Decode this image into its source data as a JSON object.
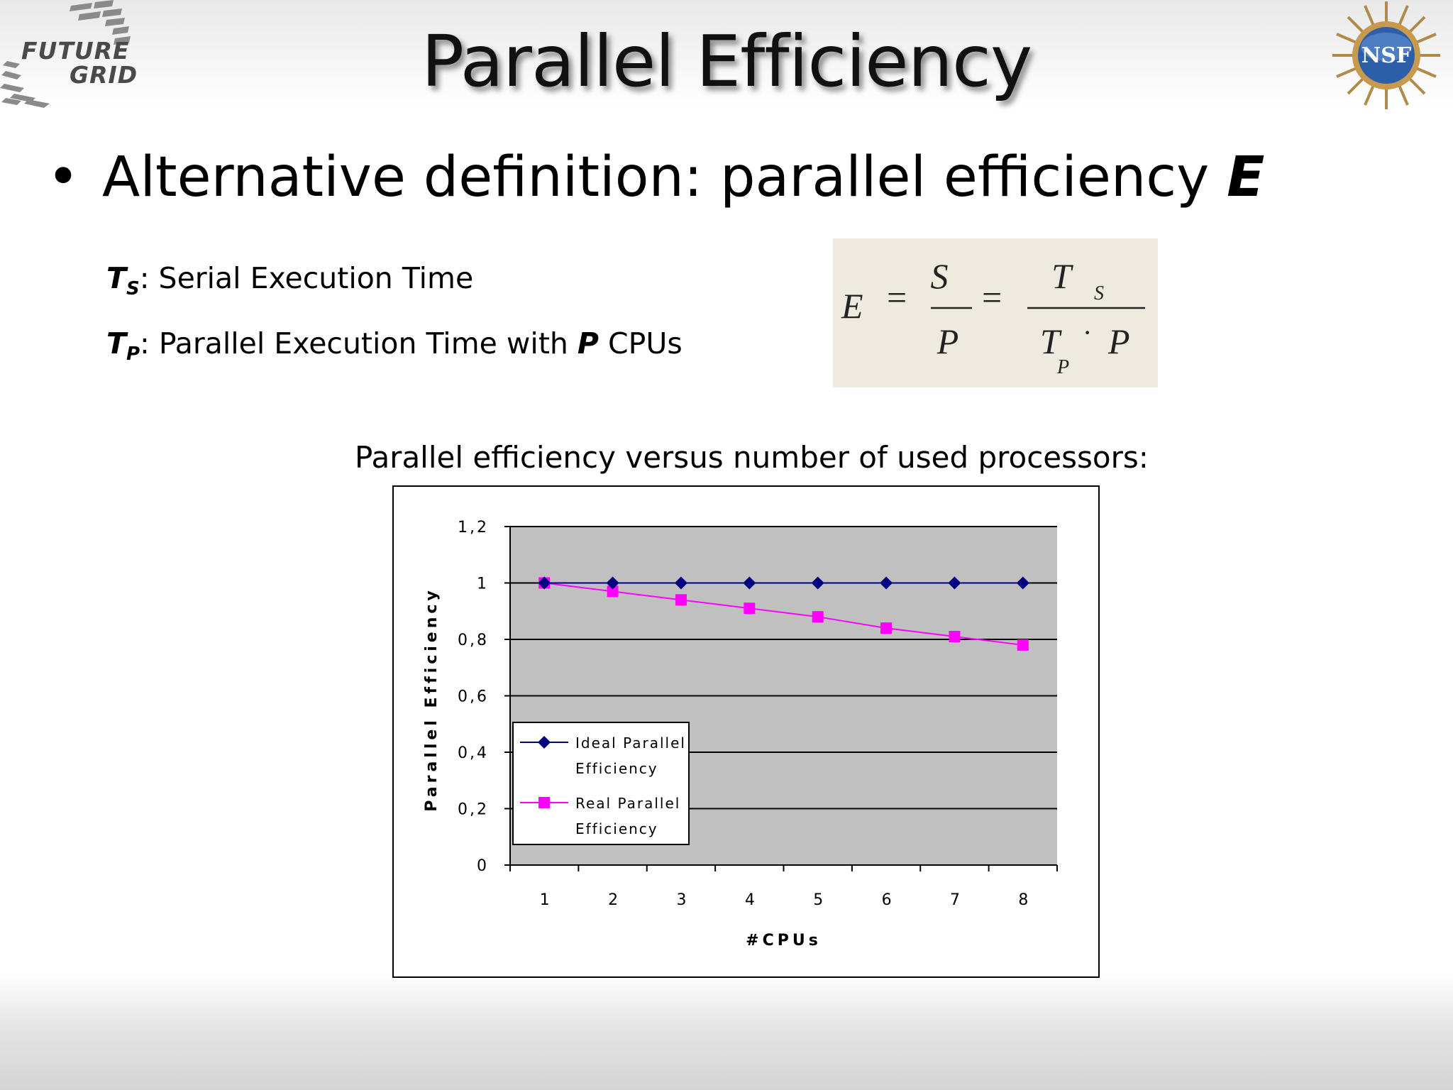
{
  "logo": {
    "line1": "FUTURE",
    "line2": "GRID"
  },
  "nsf_logo": {
    "text": "NSF"
  },
  "title": "Parallel Efficiency",
  "bullet": {
    "text": "Alternative definition: parallel efficiency ",
    "emphasis": "E"
  },
  "definitions": [
    {
      "symbol": "T",
      "sub": "S",
      "text": ": Serial Execution Time"
    },
    {
      "symbol": "T",
      "sub": "P",
      "text_before": ": Parallel Execution Time with ",
      "emphasis": "P",
      "text_after": " CPUs"
    }
  ],
  "formula": {
    "E": "E",
    "eq": "=",
    "S": "S",
    "P": "P",
    "T": "T",
    "subS": "S",
    "subP": "P",
    "dot": "·"
  },
  "chart_caption": "Parallel efficiency versus number of used processors:",
  "chart_data": {
    "type": "line",
    "x": [
      1,
      2,
      3,
      4,
      5,
      6,
      7,
      8
    ],
    "xlabel": "#CPUs",
    "ylabel": "Parallel Efficiency",
    "ylim": [
      0,
      1.2
    ],
    "yticks": [
      0,
      0.2,
      0.4,
      0.6,
      0.8,
      1,
      1.2
    ],
    "ytick_labels": [
      "0",
      "0,2",
      "0,4",
      "0,6",
      "0,8",
      "1",
      "1,2"
    ],
    "grid": true,
    "legend": "left, inside plot",
    "series": [
      {
        "name": "Ideal Parallel Efficiency",
        "legend_lines": [
          "Ideal Parallel",
          "Efficiency"
        ],
        "marker": "diamond",
        "color": "#000080",
        "values": [
          1,
          1,
          1,
          1,
          1,
          1,
          1,
          1
        ]
      },
      {
        "name": "Real Parallel Efficiency",
        "legend_lines": [
          "Real Parallel",
          "Efficiency"
        ],
        "marker": "square",
        "color": "#ff00ff",
        "values": [
          1.0,
          0.97,
          0.94,
          0.91,
          0.88,
          0.84,
          0.81,
          0.78
        ]
      }
    ],
    "plot_bg": "#c0c0c0"
  }
}
